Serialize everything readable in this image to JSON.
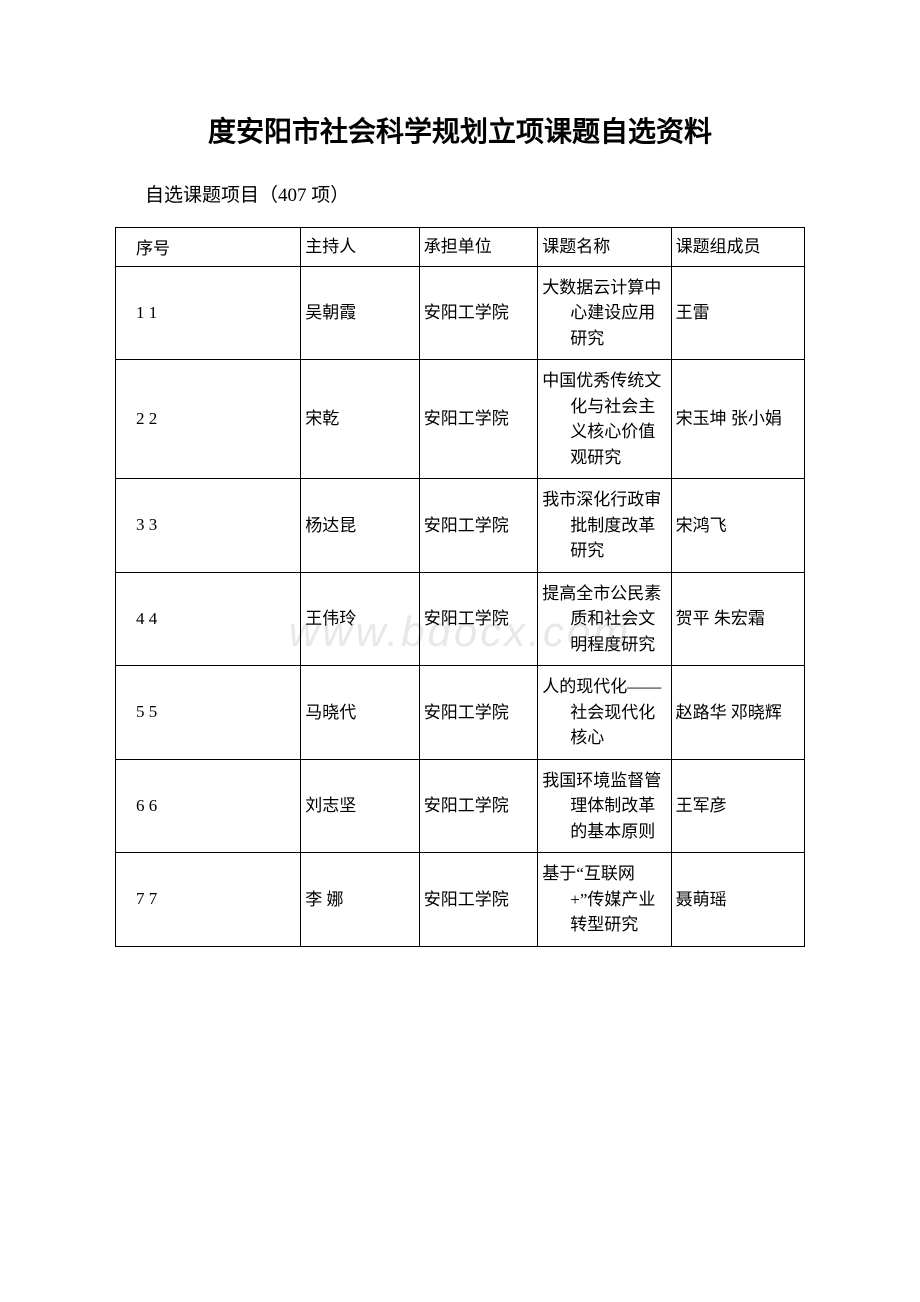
{
  "document": {
    "title": "度安阳市社会科学规划立项课题自选资料",
    "subtitle": "自选课题项目（407 项）",
    "watermark": "www.bdocx.com"
  },
  "table": {
    "headers": {
      "seq": "序号",
      "host": "主持人",
      "unit": "承担单位",
      "topic": "课题名称",
      "members": "课题组成员"
    },
    "rows": [
      {
        "seq": "1 1",
        "host": "吴朝霞",
        "unit": "安阳工学院",
        "topic": "大数据云计算中心建设应用研究",
        "members": "王雷"
      },
      {
        "seq": "2 2",
        "host": "宋乾",
        "unit": "安阳工学院",
        "topic": "中国优秀传统文化与社会主义核心价值观研究",
        "members": "宋玉坤 张小娟"
      },
      {
        "seq": "3 3",
        "host": "杨达昆",
        "unit": "安阳工学院",
        "topic": "我市深化行政审批制度改革研究",
        "members": "宋鸿飞"
      },
      {
        "seq": "4 4",
        "host": "王伟玲",
        "unit": "安阳工学院",
        "topic": "提高全市公民素质和社会文明程度研究",
        "members": "贺平 朱宏霜"
      },
      {
        "seq": "5 5",
        "host": "马晓代",
        "unit": "安阳工学院",
        "topic": "人的现代化——社会现代化核心",
        "members": "赵路华 邓晓辉"
      },
      {
        "seq": "6 6",
        "host": "刘志坚",
        "unit": "安阳工学院",
        "topic": "我国环境监督管理体制改革的基本原则",
        "members": "王军彦"
      },
      {
        "seq": "7 7",
        "host": "李 娜",
        "unit": "安阳工学院",
        "topic": "基于“互联网+”传媒产业转型研究",
        "members": "聂萌瑶"
      }
    ]
  },
  "styling": {
    "background_color": "#ffffff",
    "text_color": "#000000",
    "border_color": "#000000",
    "watermark_color": "#e8e8e8",
    "title_fontsize": 28,
    "subtitle_fontsize": 19,
    "cell_fontsize": 17,
    "column_widths": {
      "seq": "25%",
      "host": "16%",
      "unit": "16%",
      "topic": "18%",
      "members": "18%"
    }
  }
}
